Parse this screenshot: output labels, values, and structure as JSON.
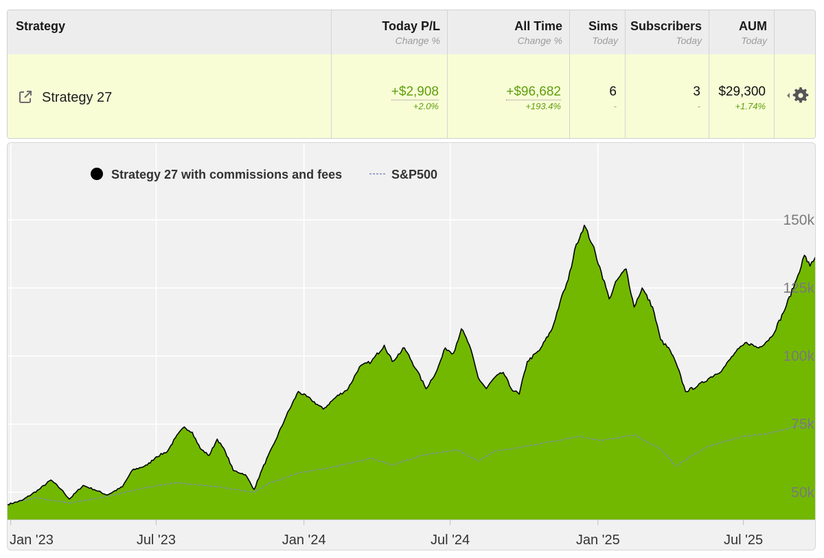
{
  "table": {
    "headers": {
      "strategy": "Strategy",
      "today_pl": {
        "main": "Today P/L",
        "sub": "Change %"
      },
      "all_time": {
        "main": "All Time",
        "sub": "Change %"
      },
      "sims": {
        "main": "Sims",
        "sub": "Today"
      },
      "subscribers": {
        "main": "Subscribers",
        "sub": "Today"
      },
      "aum": {
        "main": "AUM",
        "sub": "Today"
      }
    },
    "row": {
      "name": "Strategy 27",
      "today_pl": "+$2,908",
      "today_pct": "+2.0%",
      "all_time": "+$96,682",
      "all_time_pct": "+193.4%",
      "sims": "6",
      "sims_sub": "-",
      "subscribers": "3",
      "subscribers_sub": "-",
      "aum": "$29,300",
      "aum_pct": "+1.74%"
    },
    "colors": {
      "header_bg": "#ededed",
      "row_bg": "#f8fdd6",
      "positive": "#5f9e0b"
    },
    "icons": {
      "link": "external-link-icon",
      "toggle": "caret-left-icon",
      "settings": "gear-icon"
    }
  },
  "chart_data": {
    "type": "area",
    "legend": {
      "placement": "top-left",
      "items": [
        {
          "label": "Strategy 27 with commissions and fees",
          "marker": "dot"
        },
        {
          "label": "S&P500",
          "marker": "dashed-line"
        }
      ]
    },
    "x_ticks": [
      "Jan '23",
      "Jul '23",
      "Jan '24",
      "Jul '24",
      "Jan '25",
      "Jul '25"
    ],
    "x_tick_dates": [
      "2023-01-01",
      "2023-07-01",
      "2024-01-01",
      "2024-07-01",
      "2025-01-01",
      "2025-07-01"
    ],
    "xlim": [
      "2022-12-28",
      "2025-09-30"
    ],
    "y_ticks": [
      50000,
      75000,
      100000,
      125000,
      150000
    ],
    "y_tick_labels": [
      "50k",
      "75k",
      "100k",
      "125k",
      "150k"
    ],
    "ylim": [
      40000,
      153000
    ],
    "grid": true,
    "series": [
      {
        "name": "Strategy 27 with commissions and fees",
        "style": "area",
        "fill": "#72b800",
        "stroke": "#000000",
        "points": [
          [
            "2022-12-28",
            45500
          ],
          [
            "2023-01-15",
            47000
          ],
          [
            "2023-02-05",
            51000
          ],
          [
            "2023-02-20",
            54500
          ],
          [
            "2023-03-05",
            51000
          ],
          [
            "2023-03-15",
            47500
          ],
          [
            "2023-04-01",
            52500
          ],
          [
            "2023-04-15",
            51000
          ],
          [
            "2023-05-01",
            49000
          ],
          [
            "2023-05-20",
            52000
          ],
          [
            "2023-06-01",
            58000
          ],
          [
            "2023-06-20",
            60000
          ],
          [
            "2023-07-01",
            63000
          ],
          [
            "2023-07-15",
            65000
          ],
          [
            "2023-07-25",
            70000
          ],
          [
            "2023-08-05",
            74000
          ],
          [
            "2023-08-15",
            72000
          ],
          [
            "2023-08-25",
            66000
          ],
          [
            "2023-09-05",
            63500
          ],
          [
            "2023-09-15",
            69500
          ],
          [
            "2023-09-25",
            65000
          ],
          [
            "2023-10-05",
            58000
          ],
          [
            "2023-10-20",
            56500
          ],
          [
            "2023-10-31",
            51000
          ],
          [
            "2023-11-10",
            58500
          ],
          [
            "2023-11-25",
            68000
          ],
          [
            "2023-12-10",
            78000
          ],
          [
            "2023-12-25",
            87000
          ],
          [
            "2024-01-10",
            84000
          ],
          [
            "2024-01-25",
            80500
          ],
          [
            "2024-02-10",
            85000
          ],
          [
            "2024-02-25",
            88000
          ],
          [
            "2024-03-10",
            96000
          ],
          [
            "2024-03-25",
            98000
          ],
          [
            "2024-04-10",
            104000
          ],
          [
            "2024-04-20",
            98000
          ],
          [
            "2024-05-05",
            103000
          ],
          [
            "2024-05-20",
            95000
          ],
          [
            "2024-06-01",
            88000
          ],
          [
            "2024-06-15",
            95000
          ],
          [
            "2024-06-25",
            103000
          ],
          [
            "2024-07-05",
            101000
          ],
          [
            "2024-07-15",
            110000
          ],
          [
            "2024-07-25",
            104000
          ],
          [
            "2024-08-05",
            92000
          ],
          [
            "2024-08-15",
            88000
          ],
          [
            "2024-08-25",
            92000
          ],
          [
            "2024-09-05",
            94000
          ],
          [
            "2024-09-15",
            88000
          ],
          [
            "2024-09-25",
            86000
          ],
          [
            "2024-10-05",
            98000
          ],
          [
            "2024-10-20",
            102000
          ],
          [
            "2024-11-05",
            110000
          ],
          [
            "2024-11-15",
            120000
          ],
          [
            "2024-11-25",
            128000
          ],
          [
            "2024-12-05",
            141000
          ],
          [
            "2024-12-15",
            148000
          ],
          [
            "2024-12-25",
            141000
          ],
          [
            "2025-01-05",
            131000
          ],
          [
            "2025-01-15",
            121000
          ],
          [
            "2025-01-25",
            128000
          ],
          [
            "2025-02-05",
            132000
          ],
          [
            "2025-02-15",
            118000
          ],
          [
            "2025-02-25",
            125000
          ],
          [
            "2025-03-10",
            118000
          ],
          [
            "2025-03-20",
            106000
          ],
          [
            "2025-04-01",
            102000
          ],
          [
            "2025-04-10",
            96000
          ],
          [
            "2025-04-20",
            87000
          ],
          [
            "2025-05-05",
            89000
          ],
          [
            "2025-05-20",
            92000
          ],
          [
            "2025-06-05",
            95000
          ],
          [
            "2025-06-20",
            101000
          ],
          [
            "2025-07-05",
            105000
          ],
          [
            "2025-07-20",
            103000
          ],
          [
            "2025-08-05",
            107000
          ],
          [
            "2025-08-20",
            116000
          ],
          [
            "2025-09-05",
            128000
          ],
          [
            "2025-09-15",
            137000
          ],
          [
            "2025-09-22",
            133000
          ],
          [
            "2025-09-30",
            137000
          ]
        ]
      },
      {
        "name": "S&P500",
        "style": "dashed-line",
        "stroke": "#7f87c6",
        "points": [
          [
            "2022-12-28",
            45500
          ],
          [
            "2023-02-01",
            48000
          ],
          [
            "2023-03-15",
            46000
          ],
          [
            "2023-05-01",
            48500
          ],
          [
            "2023-06-15",
            51500
          ],
          [
            "2023-07-25",
            53500
          ],
          [
            "2023-09-15",
            52000
          ],
          [
            "2023-10-31",
            50000
          ],
          [
            "2023-11-20",
            53500
          ],
          [
            "2023-12-25",
            57000
          ],
          [
            "2024-02-10",
            59500
          ],
          [
            "2024-03-25",
            62500
          ],
          [
            "2024-04-20",
            60000
          ],
          [
            "2024-05-25",
            63500
          ],
          [
            "2024-07-10",
            65500
          ],
          [
            "2024-08-05",
            61500
          ],
          [
            "2024-08-25",
            65000
          ],
          [
            "2024-10-15",
            67500
          ],
          [
            "2024-11-20",
            69500
          ],
          [
            "2024-12-10",
            70500
          ],
          [
            "2025-01-05",
            69000
          ],
          [
            "2025-02-15",
            71000
          ],
          [
            "2025-03-20",
            66000
          ],
          [
            "2025-04-08",
            59500
          ],
          [
            "2025-04-25",
            63000
          ],
          [
            "2025-05-20",
            67000
          ],
          [
            "2025-06-30",
            70500
          ],
          [
            "2025-08-01",
            71500
          ],
          [
            "2025-09-30",
            76000
          ]
        ]
      }
    ]
  }
}
